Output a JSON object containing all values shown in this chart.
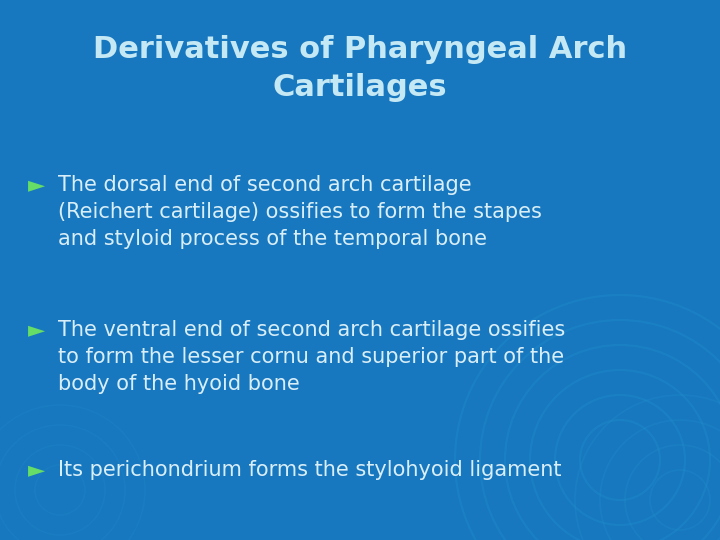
{
  "title_line1": "Derivatives of Pharyngeal Arch",
  "title_line2": "Cartilages",
  "bg_color": "#1878bf",
  "title_color": "#c5e8f5",
  "bullet_color": "#66dd66",
  "text_color": "#d8eef8",
  "bullet_symbol": "►",
  "bullets": [
    "The dorsal end of second arch cartilage\n(Reichert cartilage) ossifies to form the stapes\nand styloid process of the temporal bone",
    "The ventral end of second arch cartilage ossifies\nto form the lesser cornu and superior part of the\nbody of the hyoid bone",
    "Its perichondrium forms the stylohyoid ligament"
  ],
  "title_fontsize": 22,
  "bullet_fontsize": 15,
  "figsize": [
    7.2,
    5.4
  ],
  "dpi": 100,
  "swirl_color": "#2090d0",
  "swirl_alpha": 0.35
}
